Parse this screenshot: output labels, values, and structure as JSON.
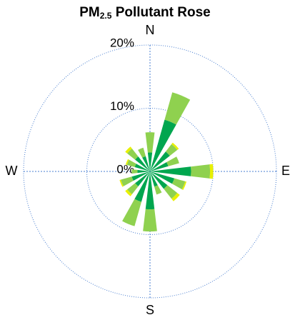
{
  "chart_data": {
    "type": "rose",
    "title": {
      "main": "PM",
      "sub": "2.5",
      "rest": " Pollutant Rose"
    },
    "directions": [
      "N",
      "E",
      "S",
      "W"
    ],
    "sectors": 16,
    "rlim": [
      0,
      20
    ],
    "rticks": [
      {
        "value": 0,
        "label": "0%"
      },
      {
        "value": 10,
        "label": "10%"
      },
      {
        "value": 20,
        "label": "20%"
      }
    ],
    "series": [
      {
        "color": "#00a64f",
        "values": [
          3,
          8.5,
          4,
          3,
          6.5,
          4,
          3.5,
          2.5,
          6,
          5,
          3,
          3,
          2,
          2.5,
          3,
          2.5
        ]
      },
      {
        "color": "#8fd14f",
        "values": [
          3.2,
          4.5,
          1.5,
          1.8,
          3,
          1.8,
          2,
          1.3,
          3.5,
          4,
          1.6,
          1.8,
          0.9,
          1.3,
          1.6,
          1.4
        ]
      },
      {
        "color": "#e8f000",
        "values": [
          0,
          0,
          0.3,
          0,
          0.5,
          0.2,
          0.5,
          0,
          0,
          0,
          0.4,
          0.2,
          0,
          0.2,
          0.4,
          0
        ]
      }
    ]
  }
}
